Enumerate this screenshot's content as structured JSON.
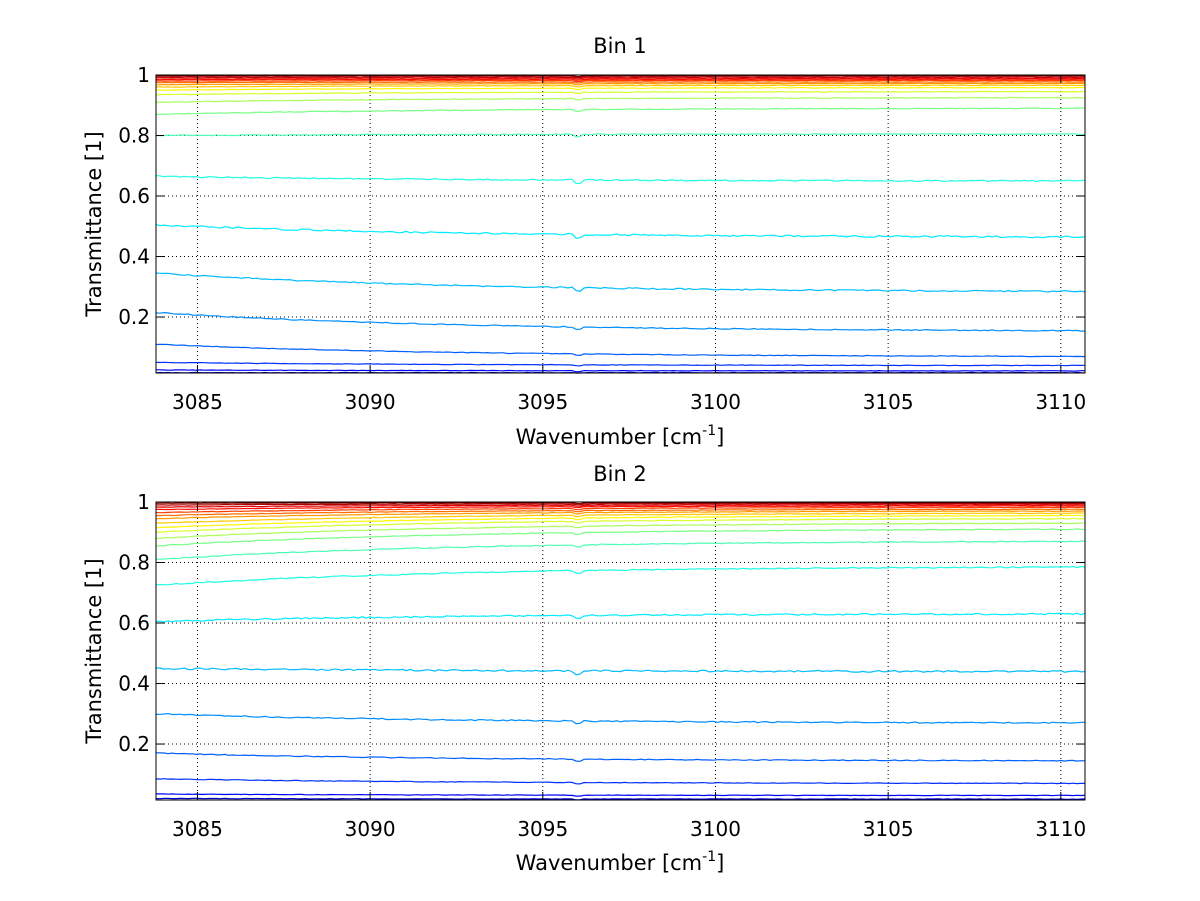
{
  "chart_data": [
    {
      "type": "line",
      "title": "Bin 1",
      "xlabel_main": "Wavenumber [cm",
      "xlabel_sup": "-1",
      "xlabel_end": "]",
      "ylabel": "Transmittance [1]",
      "xlim": [
        3083.8,
        3110.7
      ],
      "ylim": [
        0.015,
        1.0
      ],
      "xticks": [
        3085,
        3090,
        3095,
        3100,
        3105,
        3110
      ],
      "yticks": [
        0.2,
        0.4,
        0.6,
        0.8,
        1
      ],
      "xtick_labels": [
        "3085",
        "3090",
        "3095",
        "3100",
        "3105",
        "3110"
      ],
      "ytick_labels": [
        "0.2",
        "0.4",
        "0.6",
        "0.8",
        "1"
      ],
      "grid": true,
      "line_endpoints": [
        [
          0.016,
          0.016
        ],
        [
          0.025,
          0.022
        ],
        [
          0.05,
          0.04
        ],
        [
          0.11,
          0.07
        ],
        [
          0.215,
          0.155
        ],
        [
          0.345,
          0.285
        ],
        [
          0.505,
          0.465
        ],
        [
          0.665,
          0.65
        ],
        [
          0.8,
          0.805
        ],
        [
          0.87,
          0.89
        ],
        [
          0.91,
          0.925
        ],
        [
          0.935,
          0.945
        ],
        [
          0.95,
          0.958
        ],
        [
          0.96,
          0.966
        ],
        [
          0.968,
          0.972
        ],
        [
          0.975,
          0.977
        ],
        [
          0.98,
          0.982
        ],
        [
          0.985,
          0.986
        ],
        [
          0.99,
          0.99
        ],
        [
          0.994,
          0.994
        ],
        [
          0.998,
          0.998
        ]
      ]
    },
    {
      "type": "line",
      "title": "Bin 2",
      "xlabel_main": "Wavenumber [cm",
      "xlabel_sup": "-1",
      "xlabel_end": "]",
      "ylabel": "Transmittance [1]",
      "xlim": [
        3083.8,
        3110.7
      ],
      "ylim": [
        0.015,
        1.0
      ],
      "xticks": [
        3085,
        3090,
        3095,
        3100,
        3105,
        3110
      ],
      "yticks": [
        0.2,
        0.4,
        0.6,
        0.8,
        1
      ],
      "xtick_labels": [
        "3085",
        "3090",
        "3095",
        "3100",
        "3105",
        "3110"
      ],
      "ytick_labels": [
        "0.2",
        "0.4",
        "0.6",
        "0.8",
        "1"
      ],
      "grid": true,
      "line_endpoints": [
        [
          0.02,
          0.018
        ],
        [
          0.035,
          0.03
        ],
        [
          0.085,
          0.07
        ],
        [
          0.17,
          0.145
        ],
        [
          0.3,
          0.27
        ],
        [
          0.45,
          0.44
        ],
        [
          0.605,
          0.63
        ],
        [
          0.725,
          0.785
        ],
        [
          0.81,
          0.87
        ],
        [
          0.855,
          0.91
        ],
        [
          0.88,
          0.93
        ],
        [
          0.9,
          0.945
        ],
        [
          0.915,
          0.955
        ],
        [
          0.93,
          0.963
        ],
        [
          0.945,
          0.97
        ],
        [
          0.955,
          0.976
        ],
        [
          0.965,
          0.982
        ],
        [
          0.975,
          0.987
        ],
        [
          0.983,
          0.991
        ],
        [
          0.99,
          0.995
        ],
        [
          0.996,
          0.998
        ]
      ]
    }
  ]
}
